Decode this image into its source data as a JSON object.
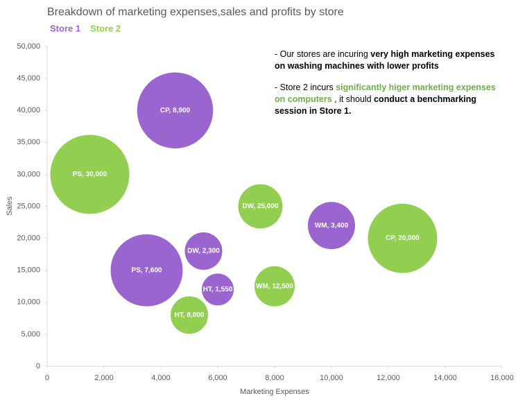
{
  "chart_data": {
    "type": "bubble",
    "title": "Breakdown of marketing expenses,sales and profits by store",
    "x_label": "Marketing Expenses",
    "y_label": "Sales",
    "legend": "top-left",
    "xlim": [
      0,
      16000
    ],
    "xticks": [
      0,
      {
        "value": 2000,
        "label": "2,000"
      },
      {
        "value": 4000,
        "label": "4,000"
      },
      {
        "value": 6000,
        "label": "6,000"
      },
      {
        "value": 8000,
        "label": "8,000"
      },
      {
        "value": 10000,
        "label": "10,000"
      },
      {
        "value": 12000,
        "label": "12,000"
      },
      {
        "value": 14000,
        "label": "14,000"
      },
      {
        "value": 16000,
        "label": "16,000"
      }
    ],
    "ylim": [
      0,
      50000
    ],
    "yticks": [
      0,
      {
        "value": 5000,
        "label": "5,000"
      },
      {
        "value": 10000,
        "label": "10,000"
      },
      {
        "value": 15000,
        "label": "15,000"
      },
      {
        "value": 20000,
        "label": "20,000"
      },
      {
        "value": 25000,
        "label": "25,000"
      },
      {
        "value": 30000,
        "label": "30,000"
      },
      {
        "value": 35000,
        "label": "35,000"
      },
      {
        "value": 40000,
        "label": "40,000"
      },
      {
        "value": 45000,
        "label": "45,000"
      },
      {
        "value": 50000,
        "label": "50,000"
      }
    ],
    "series": [
      {
        "name": "Store 1",
        "color": "#9b65cf",
        "x": [
          4500,
          3500,
          5500,
          6000,
          10000
        ],
        "values": [
          40000,
          15000,
          18000,
          12000,
          22000
        ],
        "sizes": [
          3000,
          2700,
          730,
          530,
          1160
        ],
        "labels": [
          "CP, 8,900",
          "PS, 7,600",
          "DW, 2,300",
          "HT, 1,550",
          "WM, 3,400"
        ]
      },
      {
        "name": "Store 2",
        "color": "#92cf51",
        "x": [
          1500,
          7500,
          12500,
          8000,
          5000
        ],
        "values": [
          30000,
          25000,
          20000,
          12500,
          8000
        ],
        "sizes": [
          3250,
          1020,
          2500,
          840,
          730
        ],
        "labels": [
          "PS, 30,000",
          "DW, 25,000",
          "CP, 20,000",
          "WM, 12,500",
          "HT, 8,000"
        ]
      }
    ],
    "annotations": [
      [
        {
          "text": "- Our stores are incuring ",
          "style": "normal"
        },
        {
          "text": "very high marketing expenses on washing machines with lower  profits",
          "style": "bold"
        }
      ],
      [
        {
          "text": "- Store 2 incurs ",
          "style": "normal"
        },
        {
          "text": "significantly higer marketing expenses on computers",
          "style": "highlight"
        },
        {
          "text": " , it should ",
          "style": "normal"
        },
        {
          "text": "conduct a benchmarking session in Store 1.",
          "style": "bold"
        }
      ]
    ]
  }
}
